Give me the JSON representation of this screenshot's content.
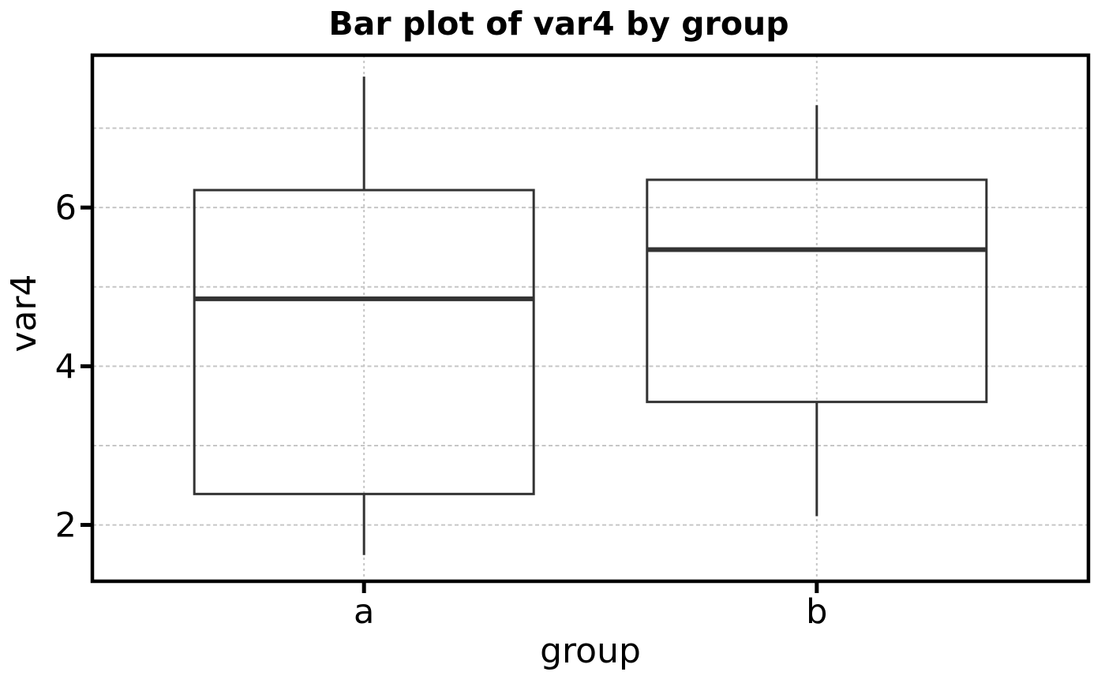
{
  "chart_data": {
    "type": "boxplot",
    "title": "Bar plot of var4 by group",
    "xlabel": "group",
    "ylabel": "var4",
    "categories": [
      "a",
      "b"
    ],
    "series": [
      {
        "name": "a",
        "whisker_low": 1.62,
        "q1": 2.39,
        "median": 4.85,
        "q3": 6.22,
        "whisker_high": 7.65
      },
      {
        "name": "b",
        "whisker_low": 2.11,
        "q1": 3.55,
        "median": 5.47,
        "q3": 6.35,
        "whisker_high": 7.29
      }
    ],
    "y_ticks": [
      2,
      4,
      6
    ],
    "y_gridlines": [
      2,
      3,
      4,
      5,
      6,
      7
    ],
    "ylim": [
      1.29,
      7.92
    ],
    "grid": "dashed horizontal lines at integer values, dashed vertical lines at category centers",
    "legend": "none",
    "outliers": [],
    "whisker_caps": false,
    "colors": {
      "background": "#ffffff",
      "panel_border": "#000000",
      "box_stroke": "#333333",
      "median_stroke": "#333333",
      "gridline": "#c6c6c6",
      "text": "#000000"
    }
  }
}
